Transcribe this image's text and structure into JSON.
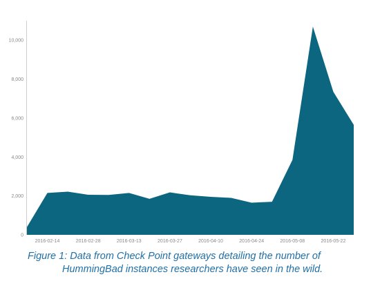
{
  "chart_data": {
    "type": "area",
    "title": "",
    "xlabel": "",
    "ylabel": "",
    "x_tick_labels": [
      "2016-02-14",
      "2016-02-28",
      "2016-03-13",
      "2016-03-27",
      "2016-04-10",
      "2016-04-24",
      "2016-05-08",
      "2016-05-22"
    ],
    "y_tick_labels": [
      "0",
      "2,000",
      "4,000",
      "6,000",
      "8,000",
      "10,000"
    ],
    "ylim": [
      0,
      11000
    ],
    "xlim": [
      "2016-02-07",
      "2016-05-29"
    ],
    "grid": false,
    "legend": "none",
    "color": "#0d6680",
    "x": [
      "2016-02-07",
      "2016-02-14",
      "2016-02-21",
      "2016-02-28",
      "2016-03-06",
      "2016-03-13",
      "2016-03-20",
      "2016-03-27",
      "2016-04-03",
      "2016-04-10",
      "2016-04-17",
      "2016-04-24",
      "2016-05-01",
      "2016-05-08",
      "2016-05-15",
      "2016-05-22",
      "2016-05-29"
    ],
    "values": [
      400,
      2150,
      2220,
      2060,
      2050,
      2150,
      1850,
      2180,
      2030,
      1950,
      1900,
      1650,
      1700,
      3850,
      10700,
      7350,
      5650
    ]
  },
  "caption": {
    "line1": "Figure 1: Data from Check Point gateways detailing the number of",
    "line2": "HummingBad instances researchers have seen in the wild."
  }
}
